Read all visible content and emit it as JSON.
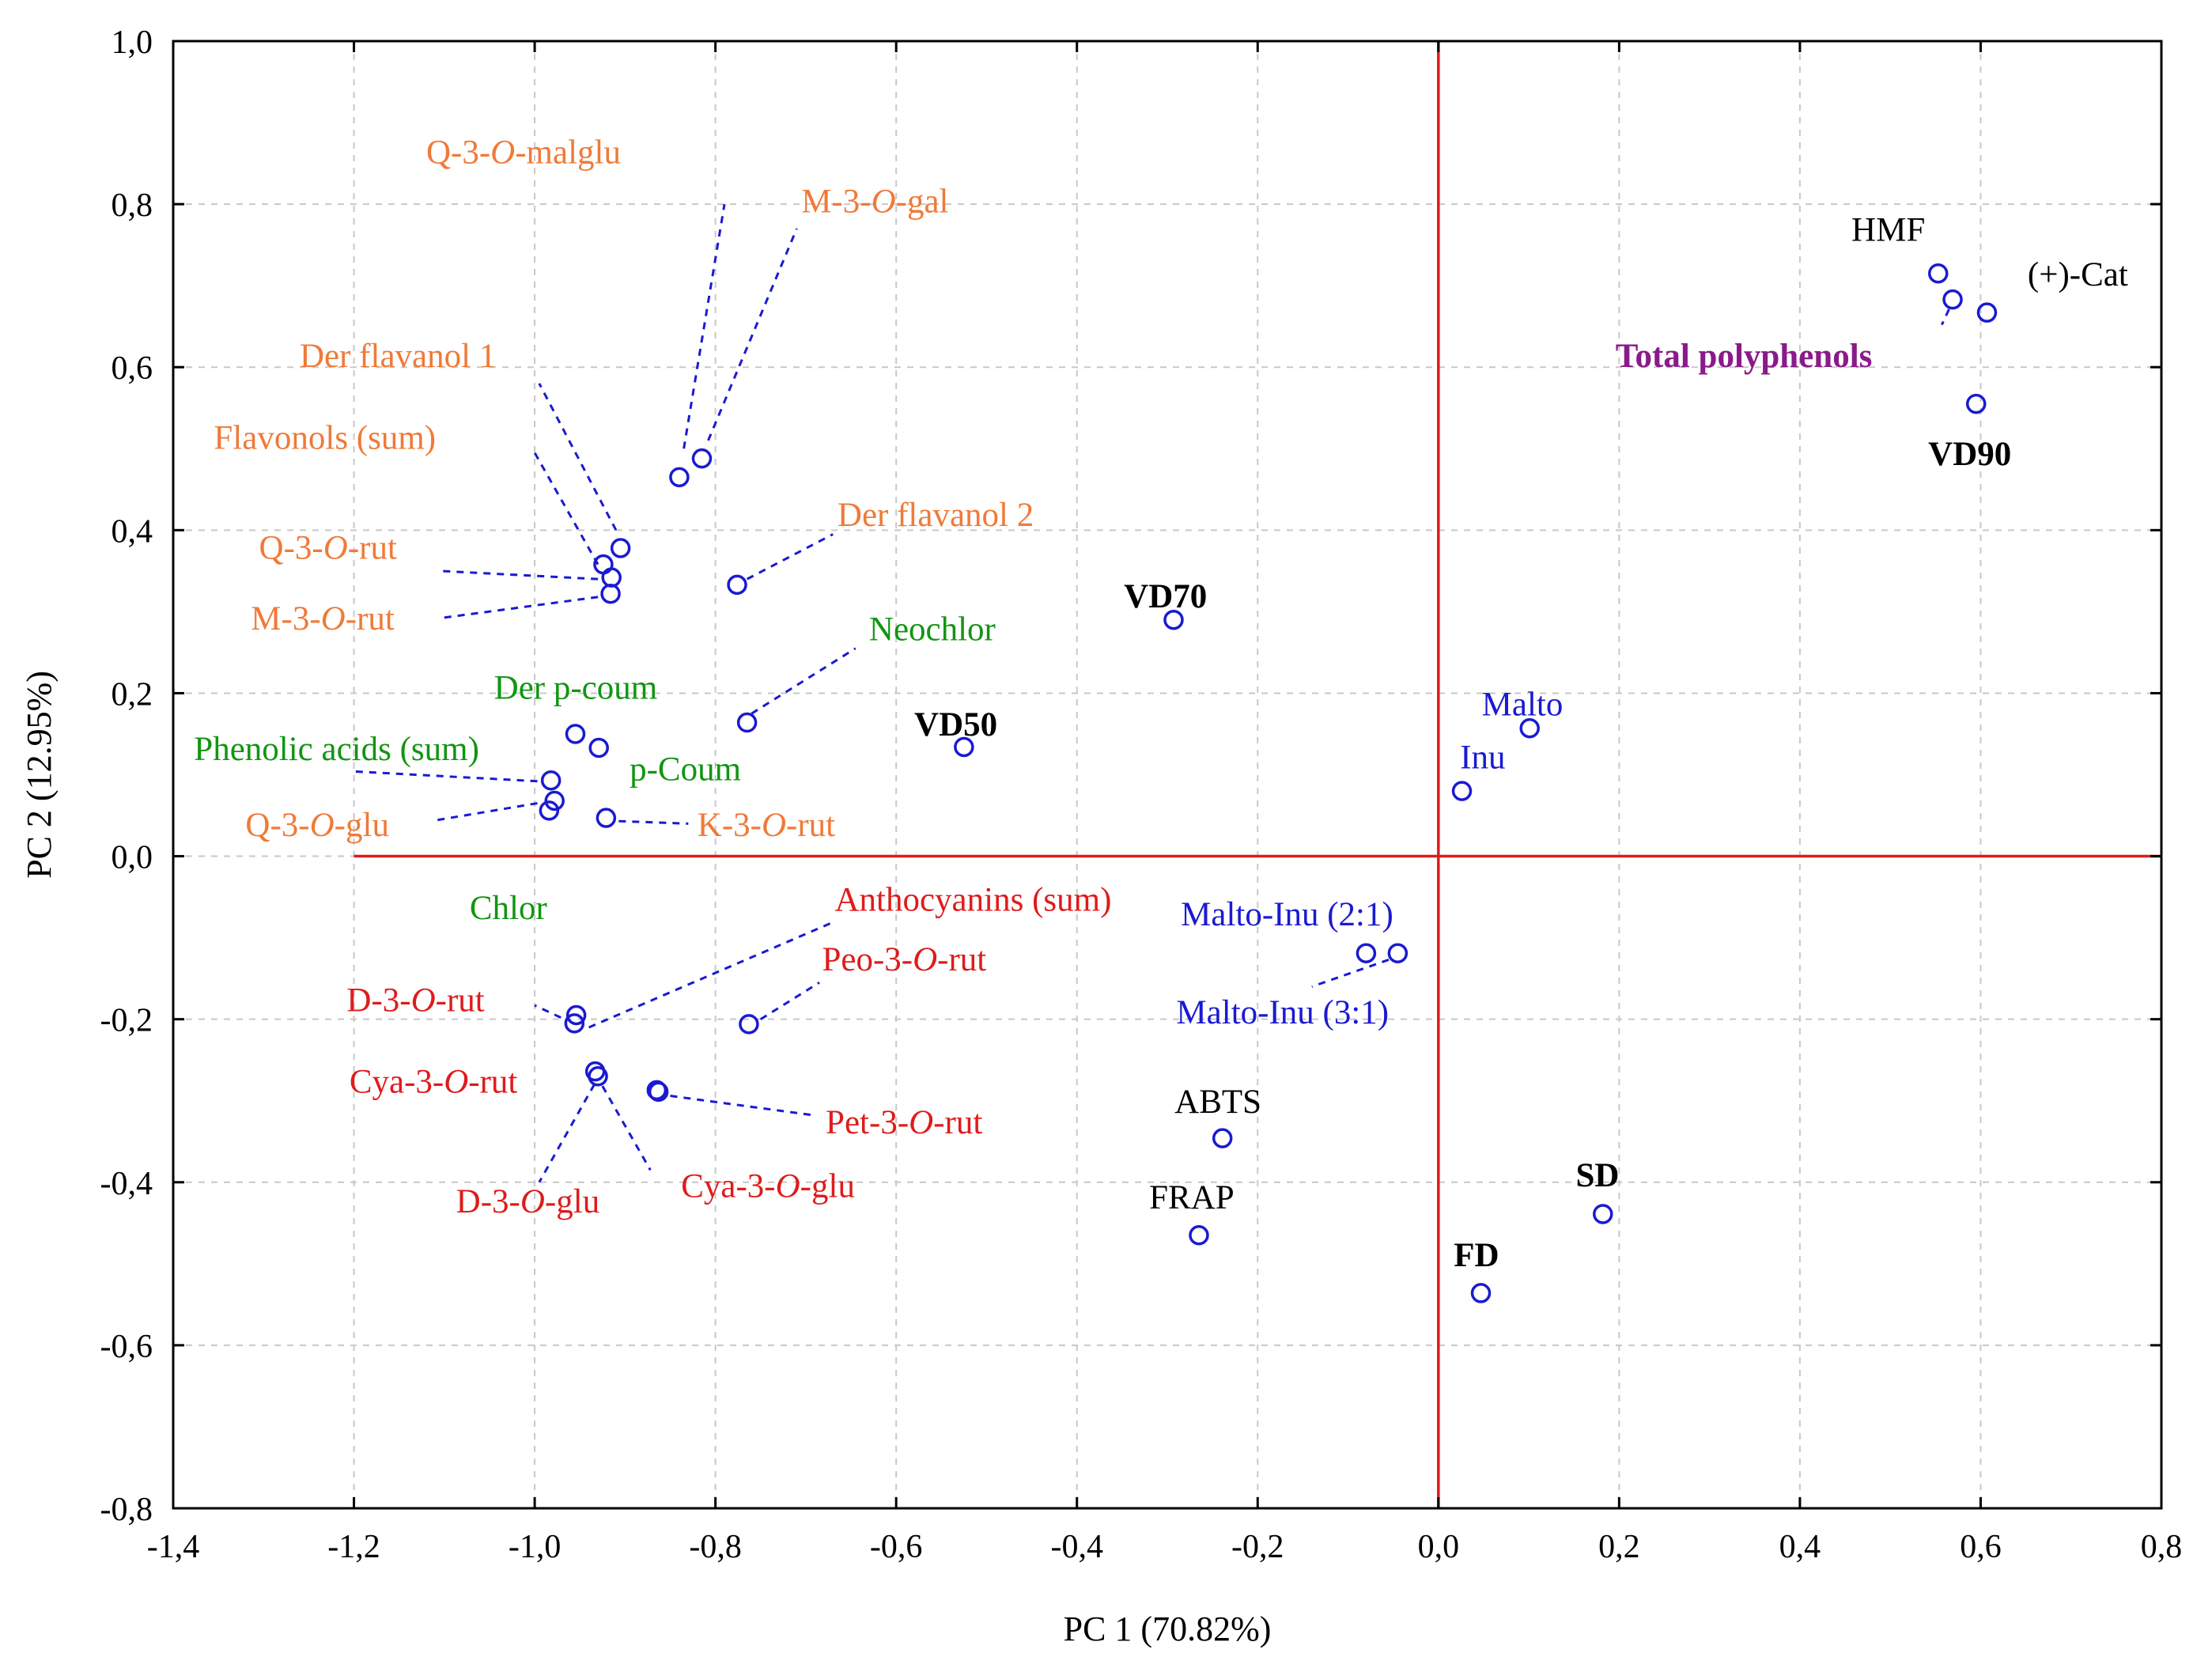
{
  "chart_data": {
    "type": "scatter",
    "title": "",
    "xlabel": "PC 1 (70.82%)",
    "ylabel": "PC 2 (12.95%)",
    "xlim": [
      -1.4,
      0.8
    ],
    "ylim": [
      -0.8,
      1.0
    ],
    "xticks": [
      "-1,4",
      "-1,2",
      "-1,0",
      "-0,8",
      "-0,6",
      "-0,4",
      "-0,2",
      "0,0",
      "0,2",
      "0,4",
      "0,6",
      "0,8"
    ],
    "yticks": [
      "-0,8",
      "-0,6",
      "-0,4",
      "-0,2",
      "0,0",
      "0,2",
      "0,4",
      "0,6",
      "0,8",
      "1,0"
    ],
    "grid": true,
    "reference_lines": {
      "x0": 0.0,
      "y0": 0.0,
      "y0_from_x": -1.2,
      "color": "#e01b1b"
    },
    "colors": {
      "orange": "#f07a38",
      "green": "#129512",
      "red": "#e01b1b",
      "blue": "#1a1ad2",
      "black": "#000000",
      "purple": "#8a1a8a",
      "marker": "#1a1ad2"
    },
    "points": [
      {
        "name": "Q-3-O-malglu",
        "x": -0.84,
        "y": 0.465
      },
      {
        "name": "M-3-O-gal",
        "x": -0.815,
        "y": 0.488
      },
      {
        "name": "Der flavanol 1",
        "x": -0.905,
        "y": 0.378
      },
      {
        "name": "Flavonols (sum)",
        "x": -0.924,
        "y": 0.358
      },
      {
        "name": "Q-3-O-rut",
        "x": -0.915,
        "y": 0.342
      },
      {
        "name": "M-3-O-rut",
        "x": -0.916,
        "y": 0.322
      },
      {
        "name": "Der flavanol 2",
        "x": -0.776,
        "y": 0.333
      },
      {
        "name": "Neochlor",
        "x": -0.765,
        "y": 0.164
      },
      {
        "name": "Der p-coum",
        "x": -0.955,
        "y": 0.15
      },
      {
        "name": "p-Coum",
        "x": -0.929,
        "y": 0.133
      },
      {
        "name": "Phenolic acids (sum)",
        "x": -0.982,
        "y": 0.093
      },
      {
        "name": "Chlor",
        "x": -0.978,
        "y": 0.068
      },
      {
        "name": "Q-3-O-glu",
        "x": -0.984,
        "y": 0.056
      },
      {
        "name": "K-3-O-rut",
        "x": -0.921,
        "y": 0.047
      },
      {
        "name": "VD50",
        "x": -0.525,
        "y": 0.134
      },
      {
        "name": "VD70",
        "x": -0.293,
        "y": 0.29
      },
      {
        "name": "Anthocyanins (sum)",
        "x": -0.954,
        "y": -0.195
      },
      {
        "name": "D-3-O-rut",
        "x": -0.956,
        "y": -0.205
      },
      {
        "name": "Peo-3-O-rut",
        "x": -0.763,
        "y": -0.206
      },
      {
        "name": "Cya-3-O-rut",
        "x": -0.933,
        "y": -0.264
      },
      {
        "name": "D-3-O-glu",
        "x": -0.93,
        "y": -0.27
      },
      {
        "name": "Cya-3-O-glu",
        "x": -0.865,
        "y": -0.287
      },
      {
        "name": "Pet-3-O-rut",
        "x": -0.863,
        "y": -0.289
      },
      {
        "name": "Malto",
        "x": 0.101,
        "y": 0.157
      },
      {
        "name": "Inu",
        "x": 0.026,
        "y": 0.08
      },
      {
        "name": "Malto-Inu (2:1)",
        "x": -0.045,
        "y": -0.119
      },
      {
        "name": "Malto-Inu (3:1)",
        "x": -0.08,
        "y": -0.119
      },
      {
        "name": "ABTS",
        "x": -0.239,
        "y": -0.346
      },
      {
        "name": "FRAP",
        "x": -0.265,
        "y": -0.465
      },
      {
        "name": "SD",
        "x": 0.182,
        "y": -0.439
      },
      {
        "name": "FD",
        "x": 0.047,
        "y": -0.536
      },
      {
        "name": "HMF",
        "x": 0.553,
        "y": 0.715
      },
      {
        "name": "Total polyphenols",
        "x": 0.569,
        "y": 0.683
      },
      {
        "name": "(+)-Cat",
        "x": 0.607,
        "y": 0.667
      },
      {
        "name": "VD90",
        "x": 0.595,
        "y": 0.555
      }
    ],
    "labels": [
      {
        "text": "Q-3-O-malglu",
        "x": -1.12,
        "y": 0.85,
        "color": "orange",
        "weight": "normal",
        "italic_part": "O",
        "leader": [
          -0.835,
          0.5,
          -0.79,
          0.8
        ]
      },
      {
        "text": "M-3-O-gal",
        "x": -0.705,
        "y": 0.79,
        "color": "orange",
        "weight": "normal",
        "italic_part": "O",
        "leader": [
          -0.808,
          0.51,
          -0.71,
          0.77
        ]
      },
      {
        "text": "Der flavanol 1",
        "x": -1.26,
        "y": 0.6,
        "color": "orange",
        "weight": "normal",
        "leader": [
          -0.91,
          0.4,
          -0.995,
          0.58
        ]
      },
      {
        "text": "Flavonols (sum)",
        "x": -1.355,
        "y": 0.5,
        "color": "orange",
        "weight": "normal",
        "leader": [
          -0.93,
          0.358,
          -1.0,
          0.495
        ]
      },
      {
        "text": "Q-3-O-rut",
        "x": -1.305,
        "y": 0.365,
        "color": "orange",
        "weight": "normal",
        "italic_part": "O",
        "leader": [
          -0.93,
          0.34,
          -1.105,
          0.35
        ]
      },
      {
        "text": "M-3-O-rut",
        "x": -1.314,
        "y": 0.278,
        "color": "orange",
        "weight": "normal",
        "italic_part": "O",
        "leader": [
          -0.93,
          0.318,
          -1.105,
          0.292
        ]
      },
      {
        "text": "Der flavanol 2",
        "x": -0.665,
        "y": 0.405,
        "color": "orange",
        "weight": "normal",
        "leader": [
          -0.765,
          0.34,
          -0.67,
          0.395
        ]
      },
      {
        "text": "Neochlor",
        "x": -0.63,
        "y": 0.265,
        "color": "green",
        "weight": "normal",
        "leader": [
          -0.76,
          0.175,
          -0.645,
          0.255
        ]
      },
      {
        "text": "Der p-coum",
        "x": -1.045,
        "y": 0.193,
        "color": "green",
        "weight": "normal"
      },
      {
        "text": "p-Coum",
        "x": -0.895,
        "y": 0.093,
        "color": "green",
        "weight": "normal"
      },
      {
        "text": "Phenolic acids (sum)",
        "x": -1.377,
        "y": 0.118,
        "color": "green",
        "weight": "normal",
        "leader": [
          -0.997,
          0.092,
          -1.2,
          0.104
        ]
      },
      {
        "text": "Q-3-O-glu",
        "x": -1.32,
        "y": 0.025,
        "color": "orange",
        "weight": "normal",
        "italic_part": "O",
        "leader": [
          -0.997,
          0.065,
          -1.11,
          0.044
        ]
      },
      {
        "text": "K-3-O-rut",
        "x": -0.82,
        "y": 0.025,
        "color": "orange",
        "weight": "normal",
        "italic_part": "O",
        "leader": [
          -0.907,
          0.043,
          -0.83,
          0.04
        ]
      },
      {
        "text": "VD50",
        "x": -0.58,
        "y": 0.148,
        "color": "black",
        "weight": "bold"
      },
      {
        "text": "VD70",
        "x": -0.348,
        "y": 0.305,
        "color": "black",
        "weight": "bold"
      },
      {
        "text": "Chlor",
        "x": -1.072,
        "y": -0.077,
        "color": "green",
        "weight": "normal"
      },
      {
        "text": "Anthocyanins (sum)",
        "x": -0.668,
        "y": -0.067,
        "color": "red",
        "weight": "normal",
        "leader": [
          -0.94,
          -0.21,
          -0.672,
          -0.082
        ]
      },
      {
        "text": "Peo-3-O-rut",
        "x": -0.682,
        "y": -0.14,
        "color": "red",
        "weight": "normal",
        "italic_part": "O",
        "leader": [
          -0.75,
          -0.2,
          -0.685,
          -0.155
        ]
      },
      {
        "text": "D-3-O-rut",
        "x": -1.208,
        "y": -0.19,
        "color": "red",
        "weight": "normal",
        "italic_part": "O",
        "leader": [
          -0.971,
          -0.198,
          -1.0,
          -0.183
        ]
      },
      {
        "text": "Cya-3-O-rut",
        "x": -1.205,
        "y": -0.29,
        "color": "red",
        "weight": "normal",
        "italic_part": "O"
      },
      {
        "text": "Pet-3-O-rut",
        "x": -0.678,
        "y": -0.34,
        "color": "red",
        "weight": "normal",
        "italic_part": "O",
        "leader": [
          -0.85,
          -0.294,
          -0.69,
          -0.318
        ]
      },
      {
        "text": "D-3-O-glu",
        "x": -1.087,
        "y": -0.437,
        "color": "red",
        "weight": "normal",
        "italic_part": "O",
        "leader": [
          -0.934,
          -0.28,
          -0.995,
          -0.4
        ]
      },
      {
        "text": "Cya-3-O-glu",
        "x": -0.838,
        "y": -0.418,
        "color": "red",
        "weight": "normal",
        "italic_part": "O",
        "leader": [
          -0.925,
          -0.282,
          -0.872,
          -0.385
        ]
      },
      {
        "text": "Malto",
        "x": 0.048,
        "y": 0.173,
        "color": "blue",
        "weight": "normal"
      },
      {
        "text": "Inu",
        "x": 0.024,
        "y": 0.108,
        "color": "blue",
        "weight": "normal"
      },
      {
        "text": "Malto-Inu (2:1)",
        "x": -0.285,
        "y": -0.085,
        "color": "blue",
        "weight": "normal"
      },
      {
        "text": "Malto-Inu (3:1)",
        "x": -0.29,
        "y": -0.205,
        "color": "blue",
        "weight": "normal",
        "leader": [
          -0.055,
          -0.127,
          -0.14,
          -0.16
        ]
      },
      {
        "text": "ABTS",
        "x": -0.292,
        "y": -0.315,
        "color": "black",
        "weight": "normal"
      },
      {
        "text": "FRAP",
        "x": -0.32,
        "y": -0.432,
        "color": "black",
        "weight": "normal"
      },
      {
        "text": "SD",
        "x": 0.152,
        "y": -0.405,
        "color": "black",
        "weight": "bold"
      },
      {
        "text": "FD",
        "x": 0.017,
        "y": -0.503,
        "color": "black",
        "weight": "bold"
      },
      {
        "text": "HMF",
        "x": 0.457,
        "y": 0.755,
        "color": "black",
        "weight": "normal"
      },
      {
        "text": "(+)-Cat",
        "x": 0.652,
        "y": 0.7,
        "color": "black",
        "weight": "normal"
      },
      {
        "text": "Total polyphenols",
        "x": 0.196,
        "y": 0.6,
        "color": "purple",
        "weight": "bold",
        "leader": [
          0.565,
          0.671,
          0.557,
          0.652
        ]
      },
      {
        "text": "VD90",
        "x": 0.542,
        "y": 0.48,
        "color": "black",
        "weight": "bold"
      }
    ]
  }
}
